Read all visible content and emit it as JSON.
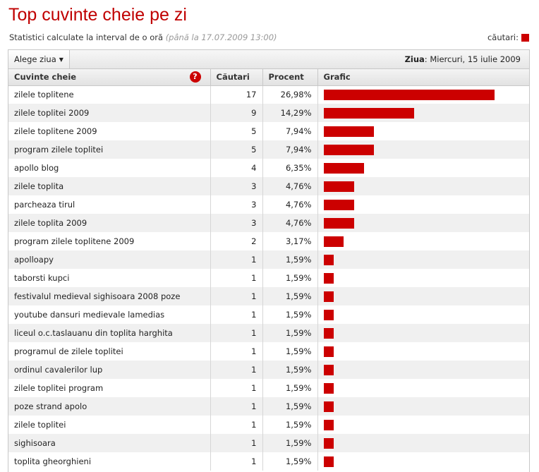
{
  "page": {
    "title": "Top cuvinte cheie pe zi",
    "subtitle": "Statistici calculate la interval de o oră",
    "subtitle_note": "(până la 17.07.2009 13:00)",
    "legend_label": "căutari:",
    "legend_color": "#cc0000"
  },
  "toolbar": {
    "dropdown_label": "Alege ziua",
    "day_label": "Ziua",
    "day_value": ": Miercuri, 15 iulie 2009"
  },
  "table": {
    "headers": {
      "keyword": "Cuvinte cheie",
      "searches": "Căutari",
      "percent": "Procent",
      "chart": "Grafic"
    },
    "help_icon": "?",
    "rows": [
      {
        "keyword": "zilele toplitene",
        "searches": "17",
        "percent": "26,98%",
        "value": 17
      },
      {
        "keyword": "zilele toplitei 2009",
        "searches": "9",
        "percent": "14,29%",
        "value": 9
      },
      {
        "keyword": "zilele toplitene 2009",
        "searches": "5",
        "percent": "7,94%",
        "value": 5
      },
      {
        "keyword": "program zilele toplitei",
        "searches": "5",
        "percent": "7,94%",
        "value": 5
      },
      {
        "keyword": "apollo blog",
        "searches": "4",
        "percent": "6,35%",
        "value": 4
      },
      {
        "keyword": "zilele toplita",
        "searches": "3",
        "percent": "4,76%",
        "value": 3
      },
      {
        "keyword": "parcheaza tirul",
        "searches": "3",
        "percent": "4,76%",
        "value": 3
      },
      {
        "keyword": "zilele toplita 2009",
        "searches": "3",
        "percent": "4,76%",
        "value": 3
      },
      {
        "keyword": "program zilele toplitene 2009",
        "searches": "2",
        "percent": "3,17%",
        "value": 2
      },
      {
        "keyword": "apolloapy",
        "searches": "1",
        "percent": "1,59%",
        "value": 1
      },
      {
        "keyword": "taborsti kupci",
        "searches": "1",
        "percent": "1,59%",
        "value": 1
      },
      {
        "keyword": "festivalul medieval sighisoara 2008 poze",
        "searches": "1",
        "percent": "1,59%",
        "value": 1
      },
      {
        "keyword": "youtube dansuri medievale lamedias",
        "searches": "1",
        "percent": "1,59%",
        "value": 1
      },
      {
        "keyword": "liceul o.c.taslauanu din toplita harghita",
        "searches": "1",
        "percent": "1,59%",
        "value": 1
      },
      {
        "keyword": "programul de zilele toplitei",
        "searches": "1",
        "percent": "1,59%",
        "value": 1
      },
      {
        "keyword": "ordinul cavalerilor lup",
        "searches": "1",
        "percent": "1,59%",
        "value": 1
      },
      {
        "keyword": "zilele toplitei program",
        "searches": "1",
        "percent": "1,59%",
        "value": 1
      },
      {
        "keyword": "poze strand apolo",
        "searches": "1",
        "percent": "1,59%",
        "value": 1
      },
      {
        "keyword": "zilele toplitei",
        "searches": "1",
        "percent": "1,59%",
        "value": 1
      },
      {
        "keyword": "sighisoara",
        "searches": "1",
        "percent": "1,59%",
        "value": 1
      },
      {
        "keyword": "toplita gheorghieni",
        "searches": "1",
        "percent": "1,59%",
        "value": 1
      }
    ]
  }
}
